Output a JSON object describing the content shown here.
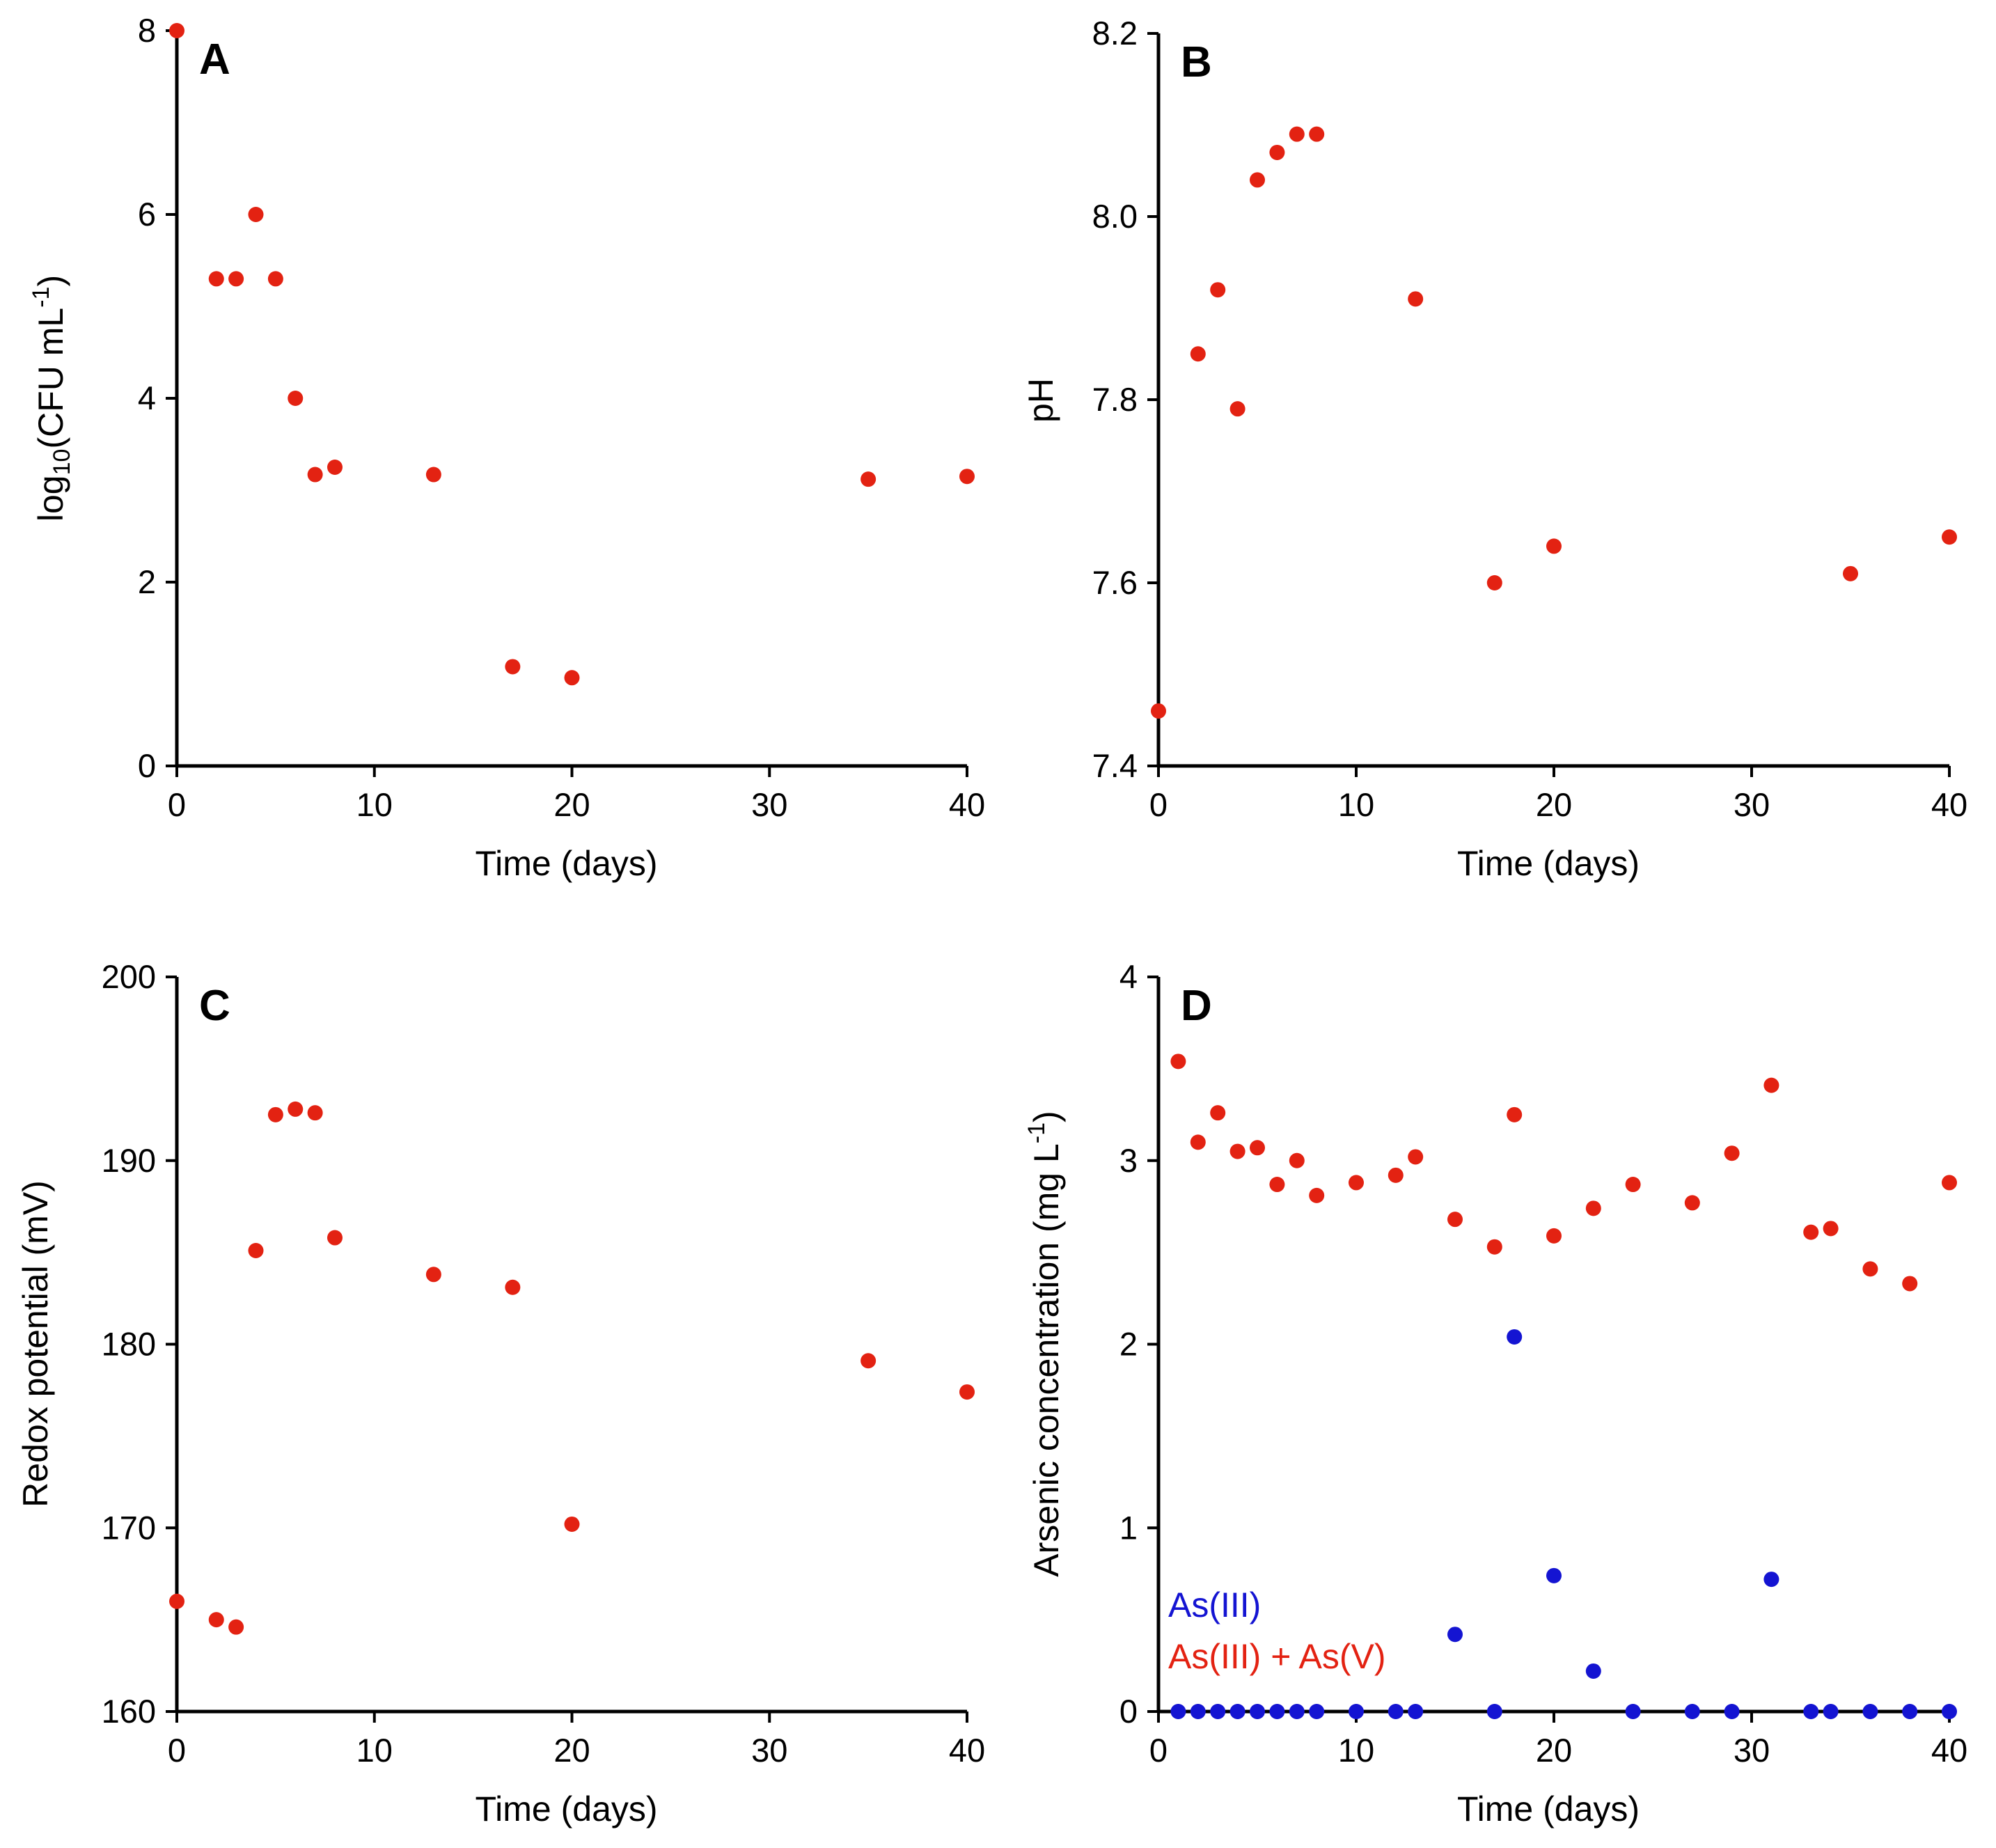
{
  "chart_data": [
    {
      "type": "scatter",
      "panel": "A",
      "title": "",
      "xlabel": "Time (days)",
      "ylabel": "log10(CFU mL-1)",
      "xlim": [
        0,
        40
      ],
      "ylim": [
        0,
        8
      ],
      "xticks": [
        0,
        10,
        20,
        30,
        40
      ],
      "yticks": [
        0,
        2,
        4,
        6,
        8
      ],
      "xtick_labels": [
        "0",
        "10",
        "20",
        "30",
        "40"
      ],
      "ytick_labels": [
        "0",
        "2",
        "4",
        "6",
        "8"
      ],
      "series": [
        {
          "name": "log10(CFU mL-1)",
          "color": "#e32212",
          "x": [
            0,
            2,
            3,
            4,
            5,
            6,
            7,
            8,
            13,
            17,
            20,
            35,
            40
          ],
          "y": [
            8.0,
            5.3,
            5.3,
            6.0,
            5.3,
            4.0,
            3.17,
            3.25,
            3.17,
            1.08,
            0.96,
            3.12,
            3.15
          ]
        }
      ]
    },
    {
      "type": "scatter",
      "panel": "B",
      "title": "",
      "xlabel": "Time (days)",
      "ylabel": "pH",
      "xlim": [
        0,
        40
      ],
      "ylim": [
        7.4,
        8.2
      ],
      "xticks": [
        0,
        10,
        20,
        30,
        40
      ],
      "yticks": [
        7.4,
        7.6,
        7.8,
        8.0,
        8.2
      ],
      "xtick_labels": [
        "0",
        "10",
        "20",
        "30",
        "40"
      ],
      "ytick_labels": [
        "7.4",
        "7.6",
        "7.8",
        "8.0",
        "8.2"
      ],
      "series": [
        {
          "name": "pH",
          "color": "#e32212",
          "x": [
            0,
            2,
            3,
            4,
            5,
            6,
            7,
            8,
            13,
            17,
            20,
            35,
            40
          ],
          "y": [
            7.46,
            7.85,
            7.92,
            7.79,
            8.04,
            8.07,
            8.09,
            8.09,
            7.91,
            7.6,
            7.64,
            7.61,
            7.65
          ]
        }
      ]
    },
    {
      "type": "scatter",
      "panel": "C",
      "title": "",
      "xlabel": "Time (days)",
      "ylabel": "Redox potential (mV)",
      "xlim": [
        0,
        40
      ],
      "ylim": [
        160,
        200
      ],
      "xticks": [
        0,
        10,
        20,
        30,
        40
      ],
      "yticks": [
        160,
        170,
        180,
        190,
        200
      ],
      "xtick_labels": [
        "0",
        "10",
        "20",
        "30",
        "40"
      ],
      "ytick_labels": [
        "160",
        "170",
        "180",
        "190",
        "200"
      ],
      "series": [
        {
          "name": "Redox potential (mV)",
          "color": "#e32212",
          "x": [
            0,
            2,
            3,
            4,
            5,
            6,
            7,
            8,
            13,
            17,
            20,
            35,
            40
          ],
          "y": [
            166.0,
            165.0,
            164.6,
            185.1,
            192.5,
            192.8,
            192.6,
            185.8,
            183.8,
            183.1,
            170.2,
            179.1,
            177.4
          ]
        }
      ]
    },
    {
      "type": "scatter",
      "panel": "D",
      "title": "",
      "xlabel": "Time (days)",
      "ylabel": "Arsenic concentration (mg L-1)",
      "xlim": [
        0,
        40
      ],
      "ylim": [
        0,
        4
      ],
      "xticks": [
        0,
        10,
        20,
        30,
        40
      ],
      "yticks": [
        0,
        1,
        2,
        3,
        4
      ],
      "xtick_labels": [
        "0",
        "10",
        "20",
        "30",
        "40"
      ],
      "ytick_labels": [
        "0",
        "1",
        "2",
        "3",
        "4"
      ],
      "legend_position": "bottom-left",
      "series": [
        {
          "name": "As(III)",
          "color": "#1414d2",
          "x": [
            1,
            2,
            3,
            4,
            5,
            6,
            7,
            8,
            10,
            12,
            13,
            15,
            17,
            18,
            20,
            22,
            24,
            27,
            29,
            31,
            33,
            34,
            36,
            38,
            40
          ],
          "y": [
            0,
            0,
            0,
            0,
            0,
            0,
            0,
            0,
            0,
            0,
            0,
            0.42,
            0,
            2.04,
            0.74,
            0.22,
            0,
            0,
            0,
            0.72,
            0,
            0,
            0,
            0,
            0
          ]
        },
        {
          "name": "As(III) + As(V)",
          "color": "#e32212",
          "x": [
            1,
            2,
            3,
            4,
            5,
            6,
            7,
            8,
            10,
            12,
            13,
            15,
            17,
            18,
            20,
            22,
            24,
            27,
            29,
            31,
            33,
            34,
            36,
            38,
            40
          ],
          "y": [
            3.54,
            3.1,
            3.26,
            3.05,
            3.07,
            2.87,
            3.0,
            2.81,
            2.88,
            2.92,
            3.02,
            2.68,
            2.53,
            3.25,
            2.59,
            2.74,
            2.87,
            2.77,
            3.04,
            3.41,
            2.61,
            2.63,
            2.41,
            2.33,
            2.88
          ]
        }
      ]
    }
  ]
}
